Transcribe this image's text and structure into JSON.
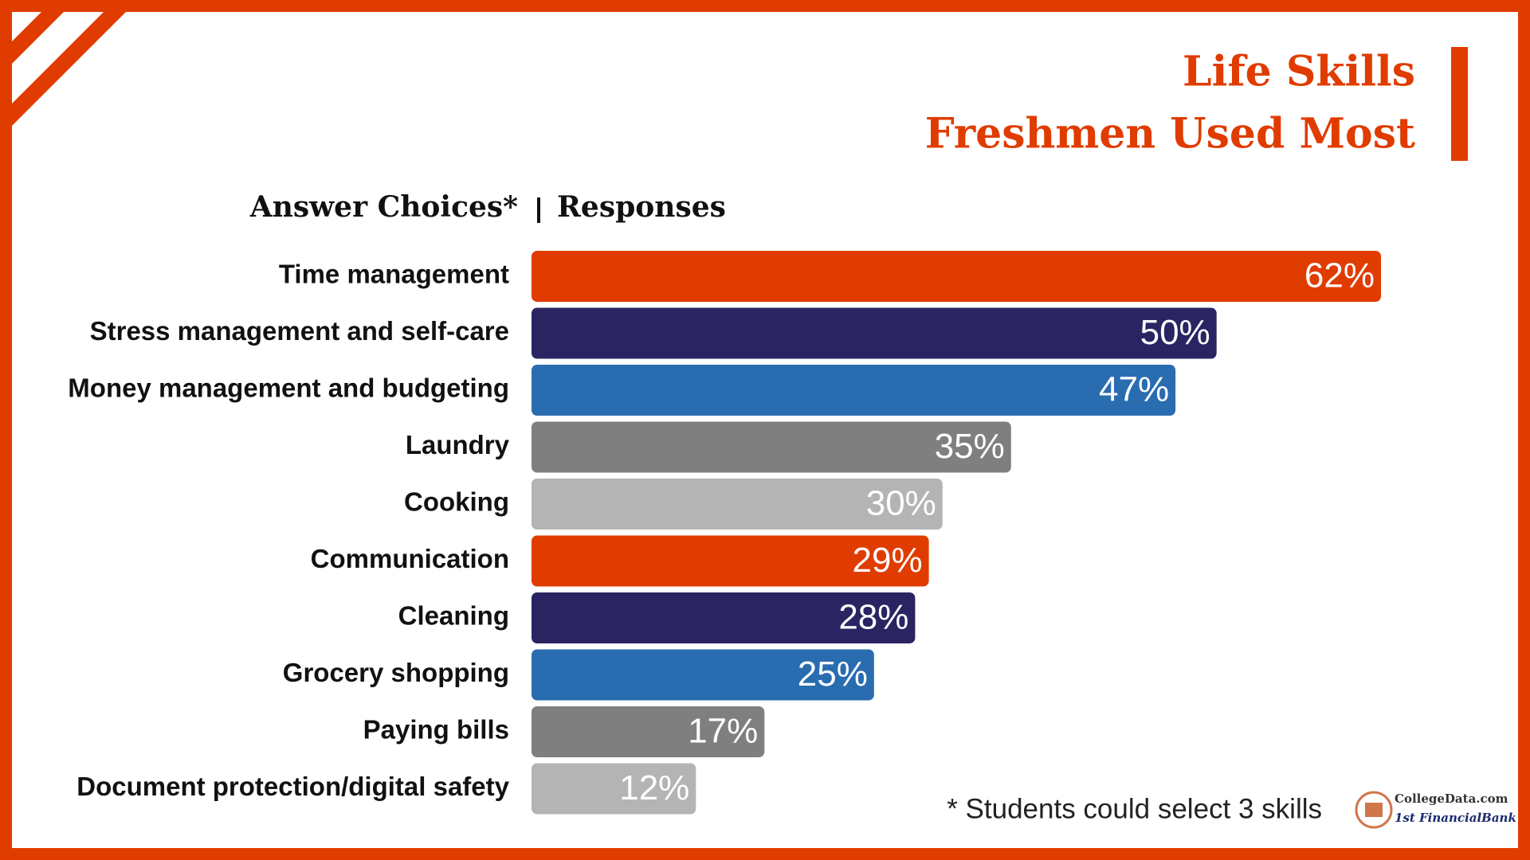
{
  "chart_data": {
    "type": "hbar",
    "title": "Life Skills",
    "subtitle": "Freshmen Used Most",
    "ylabel": "Answer Choices*",
    "xlabel": "Responses",
    "categories": [
      "Time management",
      "Stress management and self-care",
      "Money management and budgeting",
      "Laundry",
      "Cooking",
      "Communication",
      "Cleaning",
      "Grocery shopping",
      "Paying bills",
      "Document protection/digital safety"
    ],
    "values": [
      62,
      50,
      47,
      35,
      30,
      29,
      28,
      25,
      17,
      12
    ],
    "value_labels": [
      "62%",
      "50%",
      "47%",
      "35%",
      "30%",
      "29%",
      "28%",
      "25%",
      "17%",
      "12%"
    ],
    "colors": [
      "#e03c00",
      "#2a2462",
      "#2a6cb0",
      "#7f7f7f",
      "#b4b4b4",
      "#e03c00",
      "#2a2462",
      "#2a6cb0",
      "#7f7f7f",
      "#b4b4b4"
    ],
    "xlim": [
      0,
      62
    ],
    "footnote": "* Students could select 3 skills"
  },
  "logo": {
    "name": "CollegeData.com",
    "sponsor": "1st FinancialBank"
  }
}
